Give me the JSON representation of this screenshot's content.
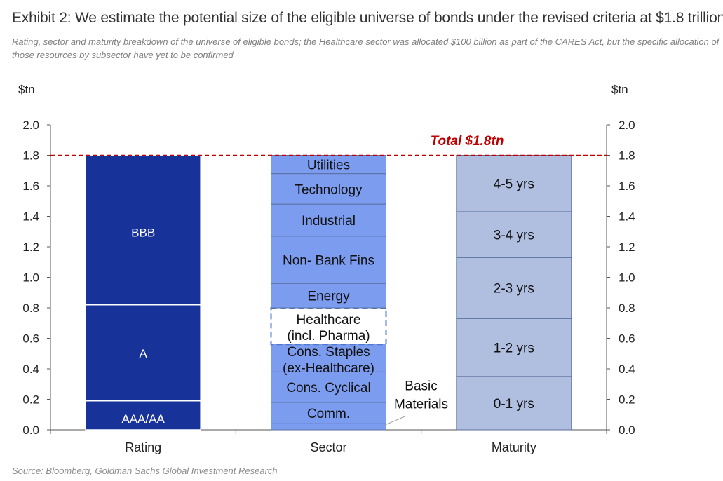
{
  "header": {
    "title": "Exhibit 2: We estimate the potential size of the eligible universe of bonds under the revised criteria at $1.8 trillion",
    "subtitle": "Rating, sector and maturity breakdown of the universe of eligible bonds; the Healthcare sector was allocated $100 billion as part of the CARES Act, but the specific allocation of those resources by subsector have yet to be confirmed"
  },
  "footer": {
    "source": "Source: Bloomberg, Goldman Sachs Global Investment Research"
  },
  "chart_data": {
    "type": "bar",
    "stacked": true,
    "title": "",
    "xlabel": "",
    "ylabel_left": "$tn",
    "ylabel_right": "$tn",
    "ylim": [
      0,
      2.0
    ],
    "yticks": [
      "0.0",
      "0.2",
      "0.4",
      "0.6",
      "0.8",
      "1.0",
      "1.2",
      "1.4",
      "1.6",
      "1.8",
      "2.0"
    ],
    "categories": [
      "Rating",
      "Sector",
      "Maturity"
    ],
    "reference_line": {
      "value": 1.8,
      "label": "Total $1.8tn",
      "color": "#c00000"
    },
    "colors": {
      "Rating": "#17339a",
      "Sector": "#7c9cf0",
      "Maturity": "#b0bee0",
      "segment_border": "#5a6f9e"
    },
    "series": [
      {
        "column": "Rating",
        "segments": [
          {
            "label": "AAA/AA",
            "value": 0.19
          },
          {
            "label": "A",
            "value": 0.63
          },
          {
            "label": "BBB",
            "value": 0.98
          }
        ]
      },
      {
        "column": "Sector",
        "segments": [
          {
            "label": "Basic Materials",
            "value": 0.04
          },
          {
            "label": "Comm.",
            "value": 0.14
          },
          {
            "label": "Cons. Cyclical",
            "value": 0.2
          },
          {
            "label": "Cons. Staples (ex-Healthcare)",
            "value": 0.18
          },
          {
            "label": "Healthcare (incl. Pharma)",
            "value": 0.24
          },
          {
            "label": "Energy",
            "value": 0.16
          },
          {
            "label": "Non- Bank Fins",
            "value": 0.31
          },
          {
            "label": "Industrial",
            "value": 0.21
          },
          {
            "label": "Technology",
            "value": 0.2
          },
          {
            "label": "Utilities",
            "value": 0.12
          }
        ]
      },
      {
        "column": "Maturity",
        "segments": [
          {
            "label": "0-1 yrs",
            "value": 0.35
          },
          {
            "label": "1-2 yrs",
            "value": 0.38
          },
          {
            "label": "2-3 yrs",
            "value": 0.4
          },
          {
            "label": "3-4 yrs",
            "value": 0.3
          },
          {
            "label": "4-5 yrs",
            "value": 0.37
          }
        ]
      }
    ],
    "labels": {
      "healthcare_line1": "Healthcare",
      "healthcare_line2": "(incl. Pharma)",
      "staples_line1": "Cons. Staples",
      "staples_line2": "(ex-Healthcare)",
      "basic_line1": "Basic",
      "basic_line2": "Materials"
    }
  }
}
